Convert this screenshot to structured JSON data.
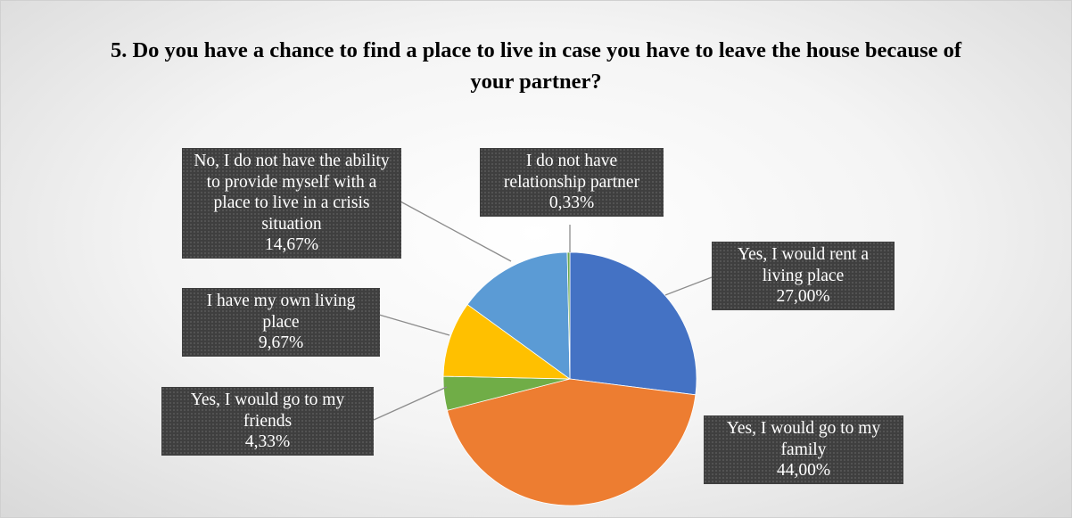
{
  "chart_data": {
    "type": "pie",
    "title": "5. Do you have a chance to find a place to live in case you have to leave the house because of your partner?",
    "categories": [
      "Yes, I would rent a living place",
      "Yes, I would go to my family",
      "Yes, I would go to my friends",
      "I have my own living place",
      "No, I do not have the ability to provide myself with a place to live in a crisis situation",
      "I do not have relationship partner"
    ],
    "values": [
      27,
      44,
      4.33,
      9.67,
      14.67,
      0.33
    ],
    "value_labels": [
      "27,00%",
      "44,00%",
      "4,33%",
      "9,67%",
      "14,67%",
      "0,33%"
    ],
    "colors": [
      "#4472c4",
      "#ed7d31",
      "#70ad47",
      "#ffc000",
      "#5b9bd5",
      "#6aa84f"
    ]
  }
}
